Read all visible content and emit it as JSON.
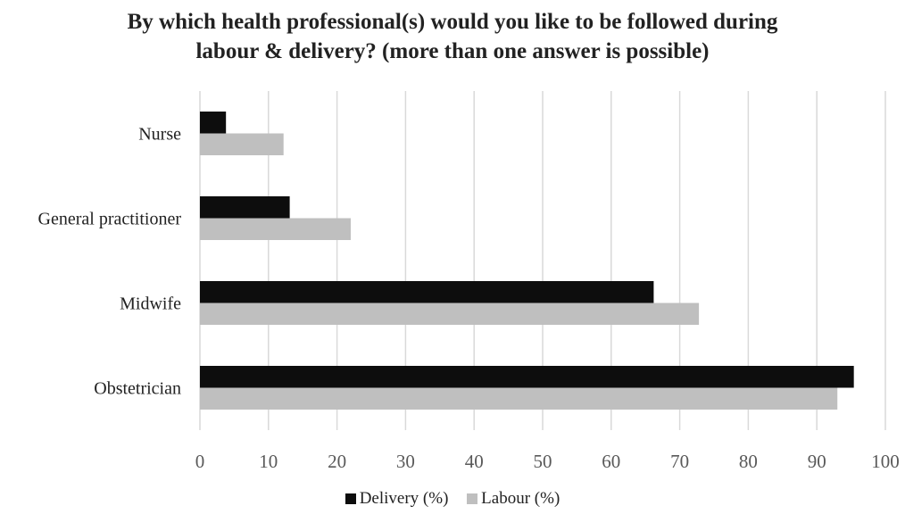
{
  "chart_data": {
    "type": "bar",
    "orientation": "horizontal",
    "title_lines": [
      "By which health professional(s) would you like to be followed during",
      "labour & delivery? (more than one answer is possible)"
    ],
    "categories": [
      "Nurse",
      "General practitioner",
      "Midwife",
      "Obstetrician"
    ],
    "series": [
      {
        "name": "Delivery (%)",
        "color": "#0d0d0d",
        "values": [
          3.8,
          13.1,
          66.2,
          95.4
        ]
      },
      {
        "name": "Labour (%)",
        "color": "#bfbfbf",
        "values": [
          12.2,
          22.0,
          72.8,
          93.0
        ]
      }
    ],
    "x_ticks": [
      "0",
      "10",
      "20",
      "30",
      "40",
      "50",
      "60",
      "70",
      "80",
      "90",
      "100"
    ],
    "xlim": [
      0,
      100
    ],
    "grid": "vertical",
    "legend": "bottom-center"
  }
}
